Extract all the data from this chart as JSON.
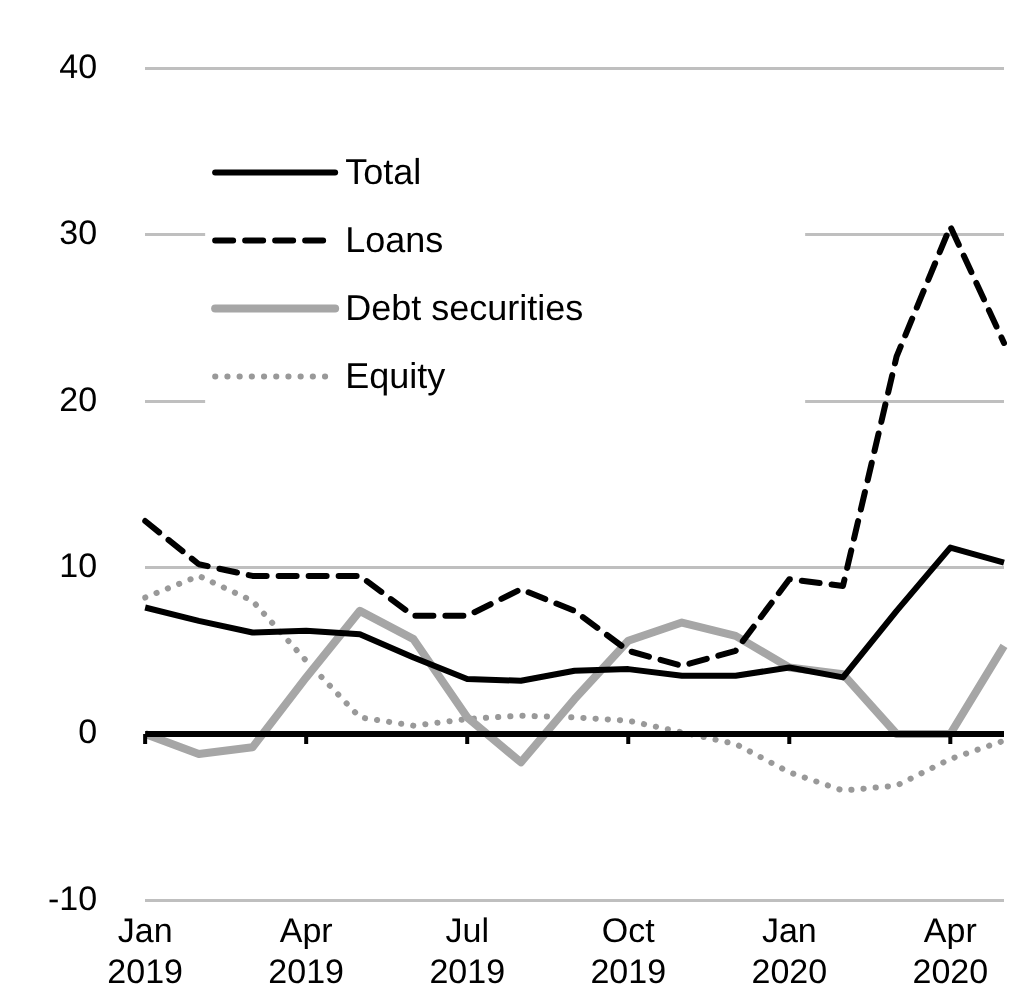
{
  "chart_data": {
    "type": "line",
    "categories": [
      "Jan 2019",
      null,
      null,
      "Apr 2019",
      null,
      null,
      "Jul 2019",
      null,
      null,
      "Oct 2019",
      null,
      null,
      "Jan 2020",
      null,
      null,
      "Apr 2020",
      null
    ],
    "series": [
      {
        "name": "Total",
        "color": "#000000",
        "line_style": "solid",
        "values": [
          7.6,
          6.8,
          6.1,
          6.2,
          6.0,
          4.6,
          3.3,
          3.2,
          3.8,
          3.9,
          3.5,
          3.5,
          4.0,
          3.4,
          7.4,
          11.2,
          10.3
        ]
      },
      {
        "name": "Loans",
        "color": "#000000",
        "line_style": "dashed",
        "values": [
          12.8,
          10.2,
          9.5,
          9.5,
          9.5,
          7.1,
          7.1,
          8.7,
          7.4,
          5.0,
          4.1,
          5.0,
          9.3,
          8.9,
          22.7,
          30.5,
          23.5
        ]
      },
      {
        "name": "Debt securities",
        "color": "#a6a6a6",
        "line_style": "solid",
        "values": [
          0.0,
          -1.2,
          -0.8,
          3.4,
          7.4,
          5.7,
          1.0,
          -1.7,
          2.1,
          5.6,
          6.7,
          5.9,
          4.0,
          3.6,
          0.0,
          0.0,
          5.3
        ]
      },
      {
        "name": "Equity",
        "color": "#999999",
        "line_style": "dotted",
        "values": [
          8.2,
          9.5,
          8.0,
          4.4,
          1.0,
          0.5,
          0.9,
          1.1,
          1.0,
          0.8,
          0.1,
          -0.6,
          -2.3,
          -3.4,
          -3.1,
          -1.5,
          -0.4
        ]
      }
    ],
    "ylim": [
      -10,
      40
    ],
    "yticks": [
      -10,
      0,
      10,
      20,
      30,
      40
    ],
    "grid": "y",
    "legend": "top left",
    "marker": "none"
  }
}
